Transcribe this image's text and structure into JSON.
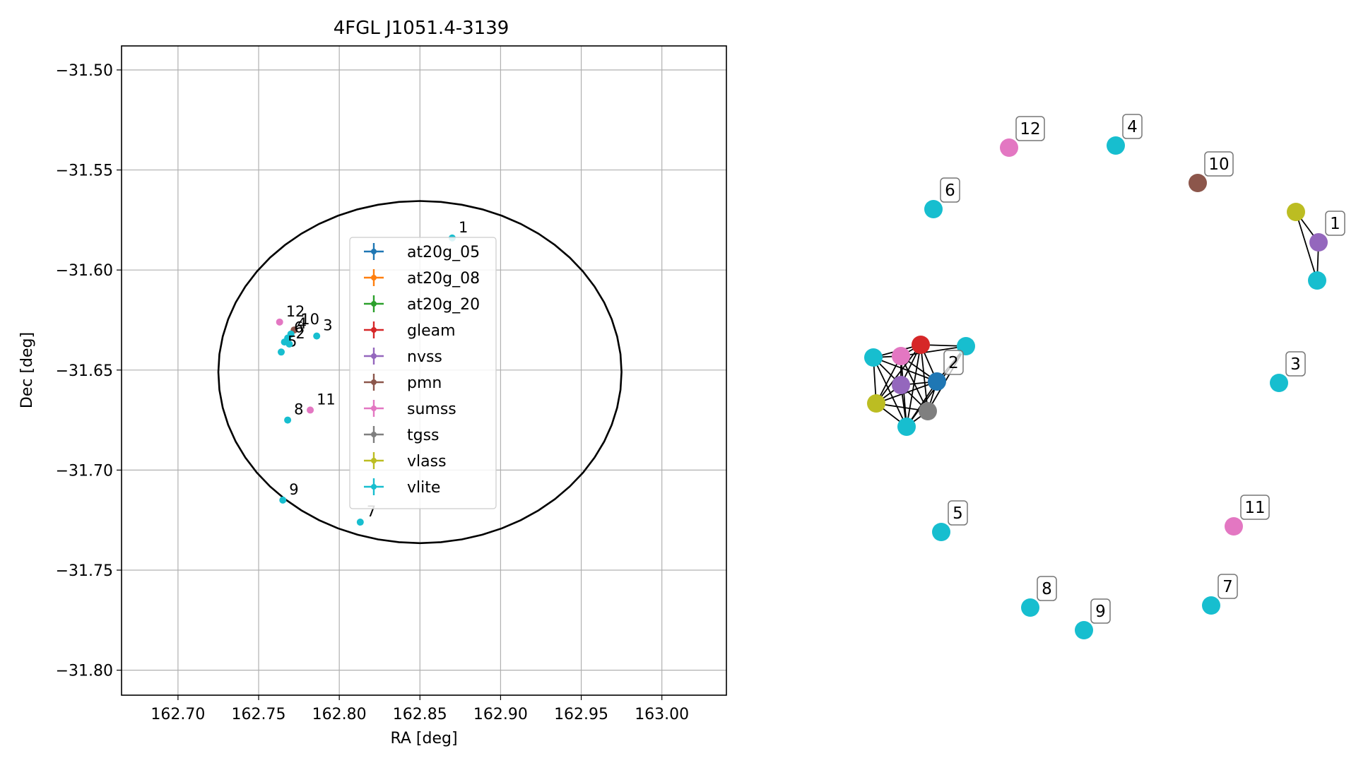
{
  "chart_data": [
    {
      "type": "scatter",
      "title": "4FGL J1051.4-3139",
      "xlabel": "RA [deg]",
      "ylabel": "Dec [deg]",
      "xlim": [
        162.665,
        163.04
      ],
      "ylim": [
        -31.8125,
        -31.488
      ],
      "xticks": [
        162.7,
        162.75,
        162.8,
        162.85,
        162.9,
        162.95,
        163.0
      ],
      "xtick_labels": [
        "162.70",
        "162.75",
        "162.80",
        "162.85",
        "162.90",
        "162.95",
        "163.00"
      ],
      "yticks": [
        -31.5,
        -31.55,
        -31.6,
        -31.65,
        -31.7,
        -31.75,
        -31.8
      ],
      "ytick_labels": [
        "−31.50",
        "−31.55",
        "−31.60",
        "−31.65",
        "−31.70",
        "−31.75",
        "−31.80"
      ],
      "grid": true,
      "legend_placement": "center",
      "legend": [
        {
          "name": "at20g_05",
          "color": "#1f77b4"
        },
        {
          "name": "at20g_08",
          "color": "#ff7f0e"
        },
        {
          "name": "at20g_20",
          "color": "#2ca02c"
        },
        {
          "name": "gleam",
          "color": "#d62728"
        },
        {
          "name": "nvss",
          "color": "#9467bd"
        },
        {
          "name": "pmn",
          "color": "#8c564b"
        },
        {
          "name": "sumss",
          "color": "#e377c2"
        },
        {
          "name": "tgss",
          "color": "#7f7f7f"
        },
        {
          "name": "vlass",
          "color": "#bcbd22"
        },
        {
          "name": "vlite",
          "color": "#17becf"
        }
      ],
      "ellipse": {
        "center_ra": 162.85,
        "center_dec": -31.651,
        "semi_axis_ra": 0.125,
        "semi_axis_dec": 0.0855
      },
      "points": [
        {
          "label": "1",
          "ra": 162.87,
          "dec": -31.584,
          "color": "#17becf"
        },
        {
          "label": "12",
          "ra": 162.763,
          "dec": -31.626,
          "color": "#e377c2"
        },
        {
          "label": "10",
          "ra": 162.772,
          "dec": -31.63,
          "color": "#8c564b"
        },
        {
          "label": "4",
          "ra": 162.77,
          "dec": -31.632,
          "color": "#17becf"
        },
        {
          "label": "6",
          "ra": 162.768,
          "dec": -31.634,
          "color": "#17becf"
        },
        {
          "label": "3",
          "ra": 162.786,
          "dec": -31.633,
          "color": "#17becf"
        },
        {
          "label": "5",
          "ra": 162.764,
          "dec": -31.641,
          "color": "#17becf"
        },
        {
          "label": "2",
          "ra": 162.769,
          "dec": -31.637,
          "color": "#17becf"
        },
        {
          "label": "",
          "ra": 162.766,
          "dec": -31.636,
          "color": "#17becf"
        },
        {
          "label": "11",
          "ra": 162.782,
          "dec": -31.67,
          "color": "#e377c2"
        },
        {
          "label": "8",
          "ra": 162.768,
          "dec": -31.675,
          "color": "#17becf"
        },
        {
          "label": "9",
          "ra": 162.765,
          "dec": -31.715,
          "color": "#17becf"
        },
        {
          "label": "7",
          "ra": 162.813,
          "dec": -31.726,
          "color": "#17becf"
        }
      ]
    },
    {
      "type": "network",
      "nodes": [
        {
          "id": "n1",
          "label": "1",
          "color": "#9467bd"
        },
        {
          "id": "n1a",
          "label": "",
          "color": "#bcbd22"
        },
        {
          "id": "n1b",
          "label": "",
          "color": "#17becf"
        },
        {
          "id": "n2",
          "label": "2",
          "color": "#1f77b4"
        },
        {
          "id": "n2r",
          "label": "",
          "color": "#d62728"
        },
        {
          "id": "n2p",
          "label": "",
          "color": "#e377c2"
        },
        {
          "id": "n2c1",
          "label": "",
          "color": "#17becf"
        },
        {
          "id": "n2c2",
          "label": "",
          "color": "#17becf"
        },
        {
          "id": "n2v",
          "label": "",
          "color": "#9467bd"
        },
        {
          "id": "n2y",
          "label": "",
          "color": "#bcbd22"
        },
        {
          "id": "n2g",
          "label": "",
          "color": "#7f7f7f"
        },
        {
          "id": "n2c3",
          "label": "",
          "color": "#17becf"
        },
        {
          "id": "n3",
          "label": "3",
          "color": "#17becf"
        },
        {
          "id": "n4",
          "label": "4",
          "color": "#17becf"
        },
        {
          "id": "n5",
          "label": "5",
          "color": "#17becf"
        },
        {
          "id": "n6",
          "label": "6",
          "color": "#17becf"
        },
        {
          "id": "n7",
          "label": "7",
          "color": "#17becf"
        },
        {
          "id": "n8",
          "label": "8",
          "color": "#17becf"
        },
        {
          "id": "n9",
          "label": "9",
          "color": "#17becf"
        },
        {
          "id": "n10",
          "label": "10",
          "color": "#8c564b"
        },
        {
          "id": "n11",
          "label": "11",
          "color": "#e377c2"
        },
        {
          "id": "n12",
          "label": "12",
          "color": "#e377c2"
        }
      ],
      "edges": [
        [
          "n1",
          "n1a"
        ],
        [
          "n1",
          "n1b"
        ],
        [
          "n1a",
          "n1b"
        ],
        [
          "n2",
          "n2r"
        ],
        [
          "n2",
          "n2p"
        ],
        [
          "n2",
          "n2c1"
        ],
        [
          "n2",
          "n2c2"
        ],
        [
          "n2",
          "n2v"
        ],
        [
          "n2",
          "n2y"
        ],
        [
          "n2",
          "n2g"
        ],
        [
          "n2",
          "n2c3"
        ],
        [
          "n2r",
          "n2p"
        ],
        [
          "n2r",
          "n2c1"
        ],
        [
          "n2r",
          "n2c2"
        ],
        [
          "n2r",
          "n2v"
        ],
        [
          "n2r",
          "n2y"
        ],
        [
          "n2r",
          "n2g"
        ],
        [
          "n2r",
          "n2c3"
        ],
        [
          "n2p",
          "n2c1"
        ],
        [
          "n2p",
          "n2c2"
        ],
        [
          "n2p",
          "n2v"
        ],
        [
          "n2p",
          "n2y"
        ],
        [
          "n2p",
          "n2g"
        ],
        [
          "n2p",
          "n2c3"
        ],
        [
          "n2c1",
          "n2v"
        ],
        [
          "n2c1",
          "n2y"
        ],
        [
          "n2c1",
          "n2c3"
        ],
        [
          "n2c2",
          "n2g"
        ],
        [
          "n2c2",
          "n2c3"
        ],
        [
          "n2v",
          "n2y"
        ],
        [
          "n2v",
          "n2g"
        ],
        [
          "n2v",
          "n2c3"
        ],
        [
          "n2y",
          "n2g"
        ],
        [
          "n2y",
          "n2c3"
        ],
        [
          "n2g",
          "n2c3"
        ]
      ]
    }
  ]
}
